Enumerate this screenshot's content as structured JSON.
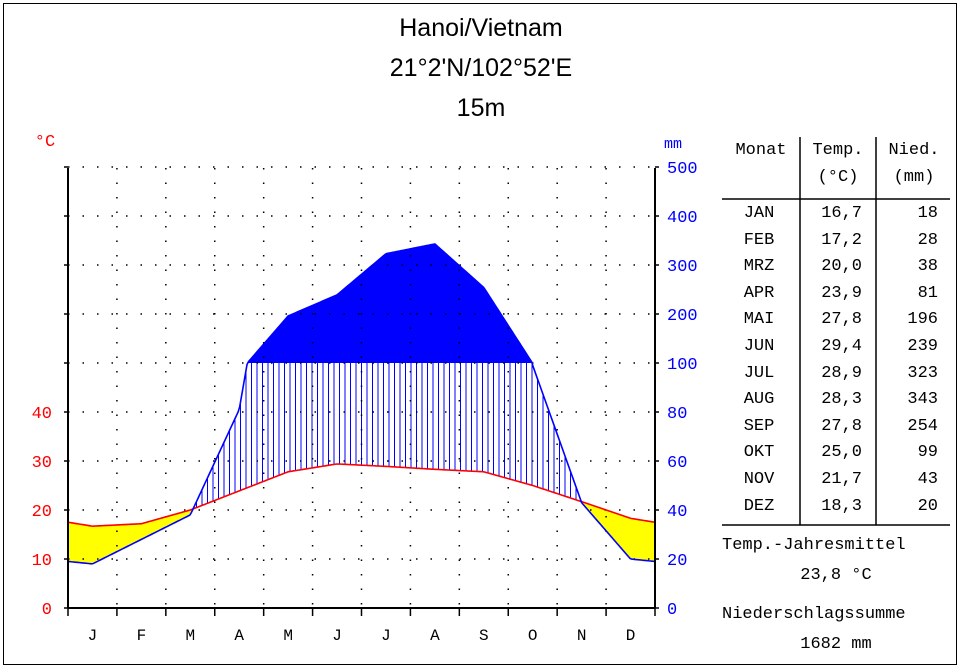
{
  "title": "Hanoi/Vietnam",
  "coords": "21°2'N/102°52'E",
  "elevation": "15m",
  "chart_data": {
    "type": "line",
    "left_unit": "°C",
    "right_unit": "mm",
    "months": [
      "J",
      "F",
      "M",
      "A",
      "M",
      "J",
      "J",
      "A",
      "S",
      "O",
      "N",
      "D"
    ],
    "temperature_ticks": [
      "0",
      "10",
      "20",
      "30",
      "40"
    ],
    "precip_ticks": [
      "0",
      "20",
      "40",
      "60",
      "80",
      "100",
      "200",
      "300",
      "400",
      "500"
    ],
    "series": [
      {
        "name": "Temp.",
        "unit": "°C",
        "color": "#ff0000",
        "values": [
          16.7,
          17.2,
          20.0,
          23.9,
          27.8,
          29.4,
          28.9,
          28.3,
          27.8,
          25.0,
          21.7,
          18.3
        ]
      },
      {
        "name": "Nied.",
        "unit": "mm",
        "color": "#0000ff",
        "values": [
          18,
          28,
          38,
          81,
          196,
          239,
          323,
          343,
          254,
          99,
          43,
          20
        ]
      }
    ],
    "temp_range": [
      0,
      50
    ],
    "precip_scale": "0–100 mm: 10 °C = 20 mm; above 100 mm: 100 mm per 10 °C",
    "arid_fill": "#ffff00",
    "humid_fill": "#0000ff"
  },
  "table": {
    "headers": [
      [
        "Monat"
      ],
      [
        "Temp.",
        "(°C)"
      ],
      [
        "Nied.",
        "(mm)"
      ]
    ],
    "rows": [
      [
        "JAN",
        "16,7",
        "18"
      ],
      [
        "FEB",
        "17,2",
        "28"
      ],
      [
        "MRZ",
        "20,0",
        "38"
      ],
      [
        "APR",
        "23,9",
        "81"
      ],
      [
        "MAI",
        "27,8",
        "196"
      ],
      [
        "JUN",
        "29,4",
        "239"
      ],
      [
        "JUL",
        "28,9",
        "323"
      ],
      [
        "AUG",
        "28,3",
        "343"
      ],
      [
        "SEP",
        "27,8",
        "254"
      ],
      [
        "OKT",
        "25,0",
        "99"
      ],
      [
        "NOV",
        "21,7",
        "43"
      ],
      [
        "DEZ",
        "18,3",
        "20"
      ]
    ]
  },
  "annual_temp_label": "Temp.-Jahresmittel",
  "annual_temp_value": "23,8 °C",
  "annual_precip_label": "Niederschlagssumme",
  "annual_precip_value": "1682 mm"
}
